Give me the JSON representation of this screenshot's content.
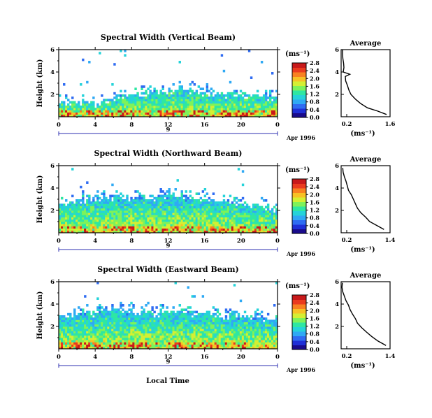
{
  "colors": {
    "colormap": [
      "#1a0b8c",
      "#1f2fd6",
      "#2f6cf2",
      "#2fa9f4",
      "#25d3d9",
      "#2ee7a2",
      "#7ef25a",
      "#d4ef33",
      "#f7c125",
      "#f88120",
      "#ea3b1e",
      "#c8191a"
    ],
    "axis": "#000000",
    "range_bar": "#2c2fb0"
  },
  "figure": {
    "xlabel": "Local Time",
    "date_label": "Apr 1996",
    "day_label": "9",
    "colorbar_unit": "(ms⁻¹)",
    "average_title": "Average"
  },
  "chart_data": [
    {
      "type": "heatmap",
      "title": "Spectral Width (Vertical Beam)",
      "ylabel": "Height (km)",
      "xlim": [
        0,
        24
      ],
      "ylim": [
        0,
        6
      ],
      "x_ticks": [
        "0",
        "4",
        "8",
        "12",
        "16",
        "20",
        "0"
      ],
      "y_ticks": [
        "2",
        "4",
        "6"
      ],
      "colorbar": {
        "ticks": [
          "0.0",
          "0.4",
          "0.8",
          "1.2",
          "1.6",
          "2.0",
          "2.4",
          "2.8"
        ],
        "range": [
          0,
          2.8
        ]
      },
      "echo_top_km": [
        1.3,
        1.3,
        1.3,
        1.3,
        1.4,
        1.5,
        1.7,
        1.9,
        2.0,
        2.2,
        2.3,
        2.4,
        2.5,
        2.5,
        2.4,
        2.3,
        2.2,
        2.2,
        2.1,
        2.0,
        2.0,
        1.9,
        1.8,
        1.8,
        1.8
      ],
      "average": {
        "xlim": [
          0.2,
          1.6
        ],
        "x_ticks": [
          "0.2",
          "1.6"
        ],
        "y_ticks": [
          "2",
          "4",
          "6"
        ],
        "xlabel": "(ms⁻¹)",
        "height_km": [
          0.2,
          0.5,
          0.8,
          1.2,
          1.6,
          2.0,
          2.4,
          2.8,
          3.2,
          3.6,
          3.8,
          4.0,
          4.4,
          4.8,
          5.2,
          5.6,
          6.0
        ],
        "width_ms": [
          1.5,
          1.25,
          0.95,
          0.75,
          0.6,
          0.48,
          0.42,
          0.38,
          0.33,
          0.32,
          0.45,
          0.26,
          0.28,
          0.27,
          0.25,
          0.24,
          0.24
        ]
      }
    },
    {
      "type": "heatmap",
      "title": "Spectral Width (Northward Beam)",
      "ylabel": "Height (km)",
      "xlim": [
        0,
        24
      ],
      "ylim": [
        0,
        6
      ],
      "x_ticks": [
        "0",
        "4",
        "8",
        "12",
        "16",
        "20",
        "0"
      ],
      "y_ticks": [
        "2",
        "4",
        "6"
      ],
      "colorbar": {
        "ticks": [
          "0.0",
          "0.4",
          "0.8",
          "1.2",
          "1.6",
          "2.0",
          "2.4",
          "2.8"
        ],
        "range": [
          0,
          2.8
        ]
      },
      "echo_top_km": [
        2.8,
        2.9,
        3.0,
        3.0,
        3.1,
        3.1,
        3.2,
        3.2,
        3.3,
        3.3,
        3.3,
        3.3,
        3.3,
        3.3,
        3.3,
        3.2,
        3.1,
        3.0,
        2.9,
        2.8,
        2.6,
        2.5,
        2.4,
        2.3,
        2.2
      ],
      "average": {
        "xlim": [
          0.2,
          1.4
        ],
        "x_ticks": [
          "0.2",
          "1.4"
        ],
        "y_ticks": [
          "2",
          "4",
          "6"
        ],
        "xlabel": "(ms⁻¹)",
        "height_km": [
          0.3,
          0.6,
          1.0,
          1.4,
          1.8,
          2.2,
          2.6,
          3.0,
          3.4,
          3.8,
          4.2,
          4.6,
          5.0,
          5.4,
          5.8
        ],
        "width_ms": [
          1.25,
          1.1,
          0.9,
          0.8,
          0.68,
          0.6,
          0.55,
          0.5,
          0.45,
          0.38,
          0.35,
          0.32,
          0.28,
          0.25,
          0.24
        ]
      }
    },
    {
      "type": "heatmap",
      "title": "Spectral Width (Eastward Beam)",
      "ylabel": "Height (km)",
      "xlim": [
        0,
        24
      ],
      "ylim": [
        0,
        6
      ],
      "x_ticks": [
        "0",
        "4",
        "8",
        "12",
        "16",
        "20",
        "0"
      ],
      "y_ticks": [
        "2",
        "4",
        "6"
      ],
      "colorbar": {
        "ticks": [
          "0.0",
          "0.4",
          "0.8",
          "1.2",
          "1.6",
          "2.0",
          "2.4",
          "2.8"
        ],
        "range": [
          0,
          2.8
        ]
      },
      "echo_top_km": [
        3.0,
        3.1,
        3.2,
        3.3,
        3.4,
        3.5,
        3.5,
        3.5,
        3.4,
        3.4,
        3.3,
        3.3,
        3.3,
        3.3,
        3.3,
        3.2,
        3.2,
        3.1,
        3.0,
        2.9,
        2.9,
        2.8,
        2.8,
        2.8,
        2.7
      ],
      "average": {
        "xlim": [
          0.2,
          1.4
        ],
        "x_ticks": [
          "0.2",
          "1.4"
        ],
        "y_ticks": [
          "2",
          "4",
          "6"
        ],
        "xlabel": "(ms⁻¹)",
        "height_km": [
          0.3,
          0.7,
          1.1,
          1.5,
          1.9,
          2.3,
          2.7,
          3.1,
          3.5,
          3.9,
          4.3,
          4.7,
          5.1,
          5.5,
          5.9
        ],
        "width_ms": [
          1.3,
          1.1,
          0.95,
          0.82,
          0.7,
          0.6,
          0.55,
          0.48,
          0.42,
          0.38,
          0.32,
          0.28,
          0.24,
          0.22,
          0.23
        ]
      }
    }
  ]
}
